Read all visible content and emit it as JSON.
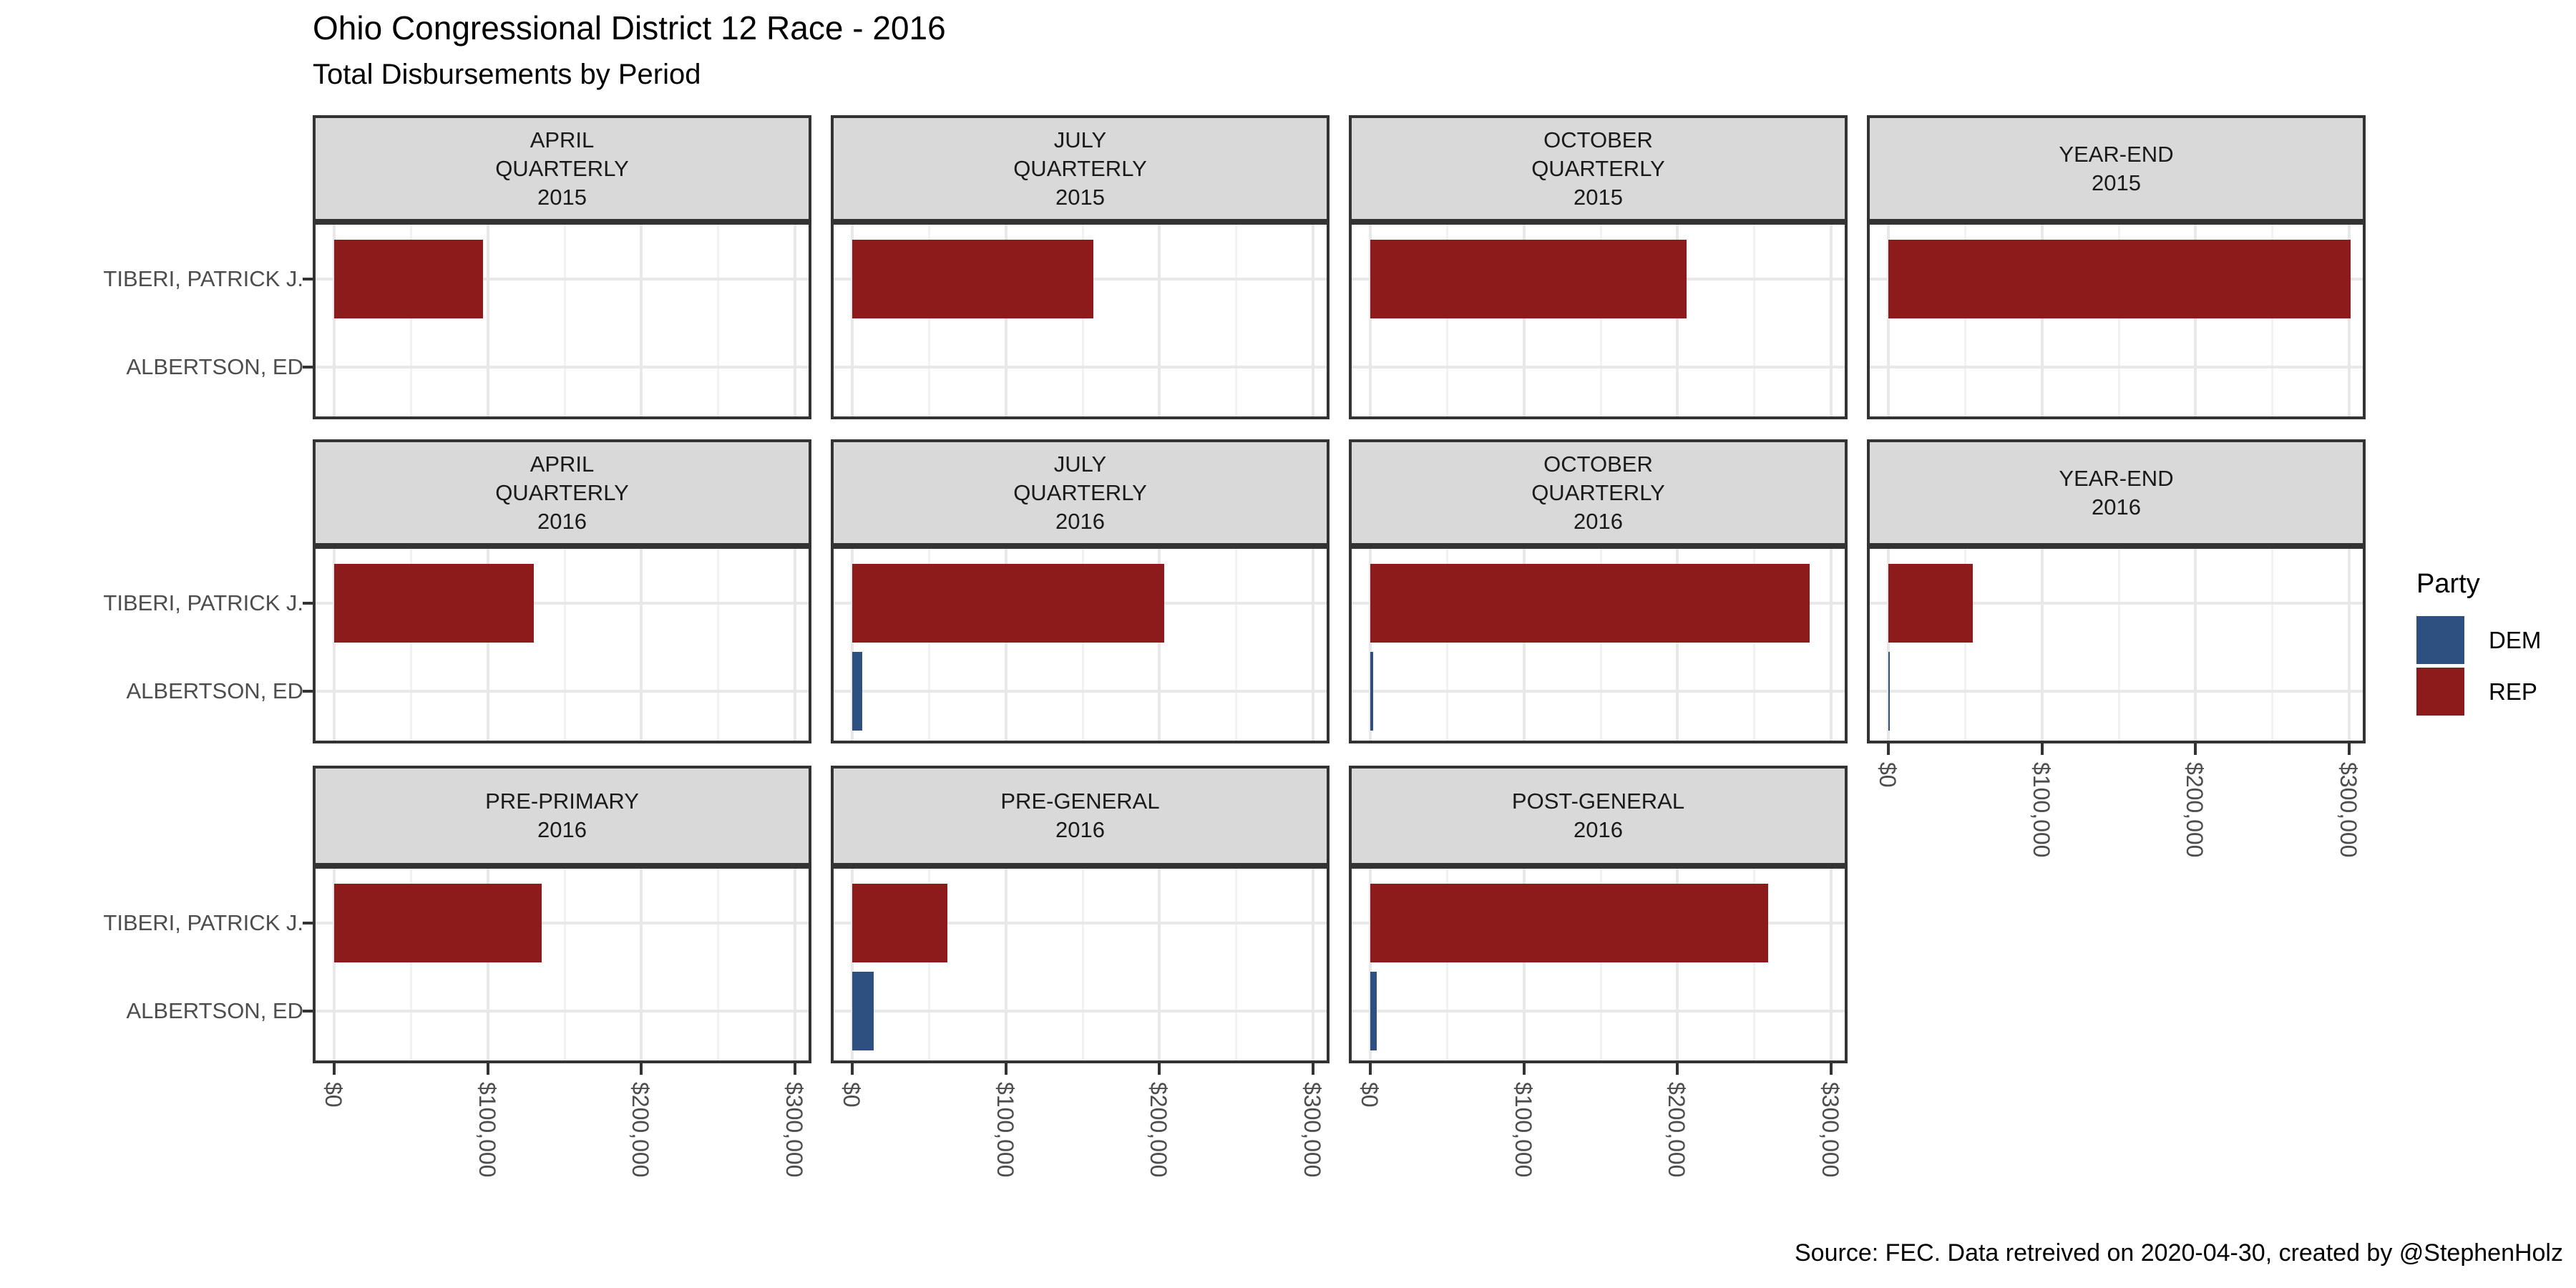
{
  "header": {
    "title": "Ohio Congressional District 12 Race - 2016",
    "subtitle": "Total Disbursements by Period"
  },
  "caption": "Source: FEC. Data retreived on 2020-04-30, created by @StephenHolz",
  "legend": {
    "title": "Party",
    "entries": [
      {
        "label": "DEM",
        "color": "#2E5080"
      },
      {
        "label": "REP",
        "color": "#8E1B1B"
      }
    ]
  },
  "colors": {
    "dem": "#2E5080",
    "rep": "#8E1B1B",
    "strip_bg": "#D9D9D9",
    "panel_border": "#333333",
    "grid_major": "#E8E8E8",
    "grid_minor": "#F2F2F2",
    "axis_text": "#4D4D4D",
    "tick": "#333333"
  },
  "chart_data": {
    "type": "bar",
    "orientation": "horizontal",
    "title": "Ohio Congressional District 12 Race - 2016",
    "subtitle": "Total Disbursements by Period",
    "caption": "Source: FEC. Data retreived on 2020-04-30, created by @StephenHolz",
    "categories": [
      "TIBERI, PATRICK J.",
      "ALBERTSON, ED"
    ],
    "category_party": [
      "REP",
      "DEM"
    ],
    "legend_position": "right",
    "grid": true,
    "x_axis": {
      "ticks": [
        0,
        100000,
        200000,
        300000
      ],
      "tick_labels": [
        "$0",
        "$100,000",
        "$200,000",
        "$300,000"
      ],
      "minor_ticks": [
        50000,
        150000,
        250000
      ],
      "range": [
        -14000,
        312000
      ],
      "tick_label_rotation": 90
    },
    "facets": [
      {
        "label_lines": [
          "APRIL",
          "QUARTERLY",
          "2015"
        ],
        "row": 0,
        "col": 0,
        "x_axis": false,
        "values": [
          97000,
          0
        ]
      },
      {
        "label_lines": [
          "JULY",
          "QUARTERLY",
          "2015"
        ],
        "row": 0,
        "col": 1,
        "x_axis": false,
        "values": [
          157000,
          0
        ]
      },
      {
        "label_lines": [
          "OCTOBER",
          "QUARTERLY",
          "2015"
        ],
        "row": 0,
        "col": 2,
        "x_axis": false,
        "values": [
          206000,
          0
        ]
      },
      {
        "label_lines": [
          "YEAR-END",
          "2015"
        ],
        "row": 0,
        "col": 3,
        "x_axis": false,
        "values": [
          301000,
          0
        ]
      },
      {
        "label_lines": [
          "APRIL",
          "QUARTERLY",
          "2016"
        ],
        "row": 1,
        "col": 0,
        "x_axis": false,
        "values": [
          130000,
          0
        ]
      },
      {
        "label_lines": [
          "JULY",
          "QUARTERLY",
          "2016"
        ],
        "row": 1,
        "col": 1,
        "x_axis": false,
        "values": [
          203000,
          6500
        ]
      },
      {
        "label_lines": [
          "OCTOBER",
          "QUARTERLY",
          "2016"
        ],
        "row": 1,
        "col": 2,
        "x_axis": false,
        "values": [
          286000,
          1800
        ]
      },
      {
        "label_lines": [
          "YEAR-END",
          "2016"
        ],
        "row": 1,
        "col": 3,
        "x_axis": true,
        "values": [
          55000,
          900
        ]
      },
      {
        "label_lines": [
          "PRE-PRIMARY",
          "2016"
        ],
        "row": 2,
        "col": 0,
        "x_axis": true,
        "values": [
          135000,
          0
        ]
      },
      {
        "label_lines": [
          "PRE-GENERAL",
          "2016"
        ],
        "row": 2,
        "col": 1,
        "x_axis": true,
        "values": [
          62000,
          14000
        ]
      },
      {
        "label_lines": [
          "POST-GENERAL",
          "2016"
        ],
        "row": 2,
        "col": 2,
        "x_axis": true,
        "values": [
          259000,
          4200
        ]
      }
    ]
  }
}
